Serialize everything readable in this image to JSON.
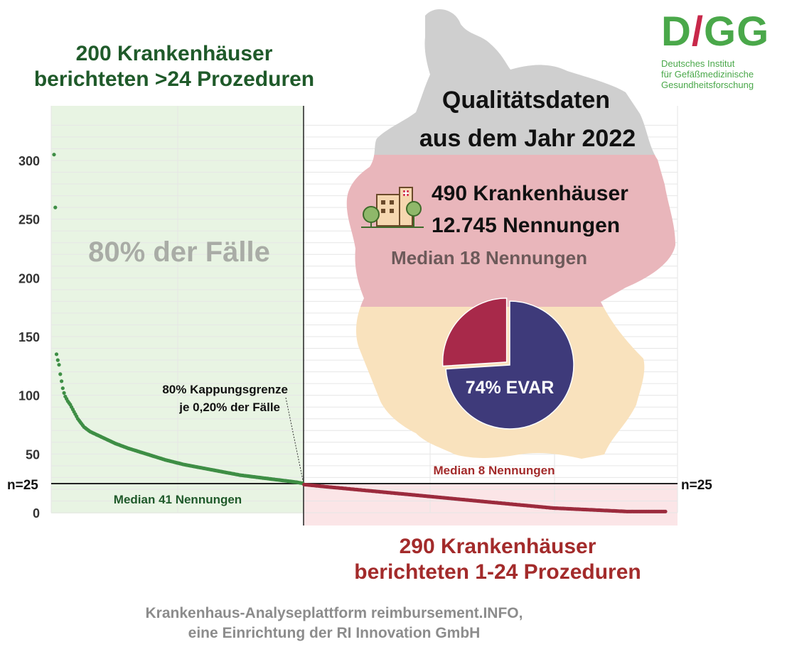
{
  "colors": {
    "green_dark": "#1f5a2a",
    "green_dots": "#3e8e45",
    "green_bg": "#e8f4e3",
    "red_dark": "#a32b2b",
    "red_dots": "#9c2b3d",
    "red_bg": "#fbe5e7",
    "logo_green": "#4aa84a",
    "logo_red": "#c8284a",
    "pie_evar": "#3e3a7a",
    "pie_other": "#a8294a",
    "map_gray": "#cfcfcf",
    "map_red": "#e9b6bb",
    "map_gold": "#f9e2bd"
  },
  "logo": {
    "letters_d": "D",
    "letters_slash": "/",
    "letters_gg": "GG",
    "line1": "Deutsches Institut",
    "line2": "für Gefäßmedizinische",
    "line3": "Gesundheitsforschung"
  },
  "header": {
    "green_title_line1": "200 Krankenhäuser",
    "green_title_line2": "berichteten >24 Prozeduren"
  },
  "info": {
    "title_line1": "Qualitätsdaten",
    "title_line2": "aus dem Jahr 2022",
    "hospitals": "490 Krankenhäuser",
    "mentions": "12.745 Nennungen",
    "median": "Median 18 Nennungen",
    "pie_label": "74% EVAR",
    "hospital_icon": "hospital-building-icon"
  },
  "annotations": {
    "share_label": "80% der Fälle",
    "cap_line1": "80% Kappungsgrenze",
    "cap_line2": "je 0,20% der Fälle",
    "median_left": "Median 41 Nennungen",
    "median_right": "Median 8 Nennungen",
    "threshold_left": "n=25",
    "threshold_right": "n=25"
  },
  "footer": {
    "red_title_line1": "290 Krankenhäuser",
    "red_title_line2": "berichteten 1-24 Prozeduren",
    "source_line1": "Krankenhaus-Analyseplattform reimbursement.INFO,",
    "source_line2": "eine Einrichtung der RI Innovation GmbH"
  },
  "chart_data": [
    {
      "type": "scatter",
      "ylim": [
        0,
        330
      ],
      "yticks": [
        0,
        50,
        100,
        150,
        200,
        250,
        300
      ],
      "ytick_labels": [
        "0",
        "50",
        "100",
        "150",
        "200",
        "250",
        "300"
      ],
      "grid": true,
      "threshold": 25,
      "x_count": 490,
      "series": [
        {
          "rank_range": [
            1,
            200
          ],
          "values_keypoints": [
            [
              1,
              305
            ],
            [
              2,
              260
            ],
            [
              3,
              135
            ],
            [
              4,
              130
            ],
            [
              5,
              126
            ],
            [
              6,
              118
            ],
            [
              7,
              112
            ],
            [
              8,
              106
            ],
            [
              9,
              102
            ],
            [
              10,
              99
            ],
            [
              12,
              95
            ],
            [
              14,
              92
            ],
            [
              17,
              86
            ],
            [
              20,
              80
            ],
            [
              25,
              73
            ],
            [
              30,
              69
            ],
            [
              40,
              64
            ],
            [
              50,
              59
            ],
            [
              60,
              55
            ],
            [
              75,
              50
            ],
            [
              90,
              45
            ],
            [
              105,
              41
            ],
            [
              120,
              38
            ],
            [
              135,
              35
            ],
            [
              150,
              32
            ],
            [
              165,
              30
            ],
            [
              180,
              28
            ],
            [
              195,
              26
            ],
            [
              200,
              25
            ]
          ]
        },
        {
          "rank_range": [
            201,
            490
          ],
          "values_keypoints": [
            [
              201,
              24
            ],
            [
              220,
              22
            ],
            [
              240,
              20
            ],
            [
              260,
              18
            ],
            [
              280,
              16
            ],
            [
              300,
              14
            ],
            [
              320,
              12
            ],
            [
              340,
              10
            ],
            [
              360,
              8
            ],
            [
              380,
              6
            ],
            [
              400,
              4
            ],
            [
              420,
              3
            ],
            [
              440,
              2
            ],
            [
              460,
              1
            ],
            [
              490,
              1
            ]
          ]
        }
      ]
    },
    {
      "type": "pie",
      "categories": [
        "EVAR",
        ""
      ],
      "values": [
        74,
        26
      ],
      "labels": [
        "74% EVAR"
      ]
    }
  ]
}
